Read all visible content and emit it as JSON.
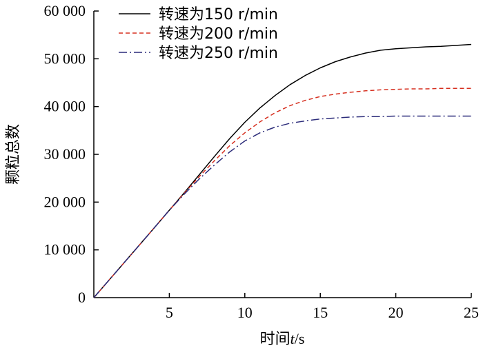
{
  "chart_data": {
    "type": "line",
    "xlabel": {
      "prefix": "时间",
      "var": "t",
      "suffix": "/s"
    },
    "ylabel": "颗粒总数",
    "xlim": [
      0,
      25
    ],
    "ylim": [
      0,
      60000
    ],
    "xticks": [
      {
        "value": 5,
        "label": "5"
      },
      {
        "value": 10,
        "label": "10"
      },
      {
        "value": 15,
        "label": "15"
      },
      {
        "value": 20,
        "label": "20"
      },
      {
        "value": 25,
        "label": "25"
      }
    ],
    "yticks": [
      {
        "value": 0,
        "label": "0"
      },
      {
        "value": 10000,
        "label": "10 000"
      },
      {
        "value": 20000,
        "label": "20 000"
      },
      {
        "value": 30000,
        "label": "30 000"
      },
      {
        "value": 40000,
        "label": "40 000"
      },
      {
        "value": 50000,
        "label": "50 000"
      },
      {
        "value": 60000,
        "label": "60 000"
      }
    ],
    "grid": false,
    "legend_position": "top-left",
    "series": [
      {
        "name": "转速为150 r/min",
        "color": "#000000",
        "dash": "solid",
        "x": [
          0,
          2,
          4,
          5,
          6,
          7,
          8,
          9,
          10,
          11,
          12,
          13,
          14,
          15,
          16,
          17,
          18,
          19,
          20,
          21,
          22,
          23,
          24,
          25
        ],
        "y": [
          0,
          7300,
          14600,
          18300,
          22000,
          25800,
          29600,
          33300,
          36700,
          39700,
          42300,
          44600,
          46500,
          48100,
          49400,
          50400,
          51200,
          51800,
          52100,
          52300,
          52500,
          52600,
          52800,
          53000
        ]
      },
      {
        "name": "转速为200 r/min",
        "color": "#d62f1f",
        "dash": "dashed",
        "x": [
          0,
          2,
          4,
          5,
          6,
          7,
          8,
          9,
          10,
          11,
          12,
          13,
          14,
          15,
          16,
          17,
          18,
          19,
          20,
          21,
          22,
          23,
          24,
          25
        ],
        "y": [
          0,
          7300,
          14600,
          18300,
          21900,
          25400,
          28700,
          31800,
          34500,
          36800,
          38700,
          40200,
          41300,
          42100,
          42600,
          43000,
          43300,
          43500,
          43600,
          43700,
          43700,
          43800,
          43800,
          43800
        ]
      },
      {
        "name": "转速为250 r/min",
        "color": "#2c2c7a",
        "dash": "dashdot",
        "x": [
          0,
          2,
          4,
          5,
          6,
          7,
          8,
          9,
          10,
          11,
          12,
          13,
          14,
          15,
          16,
          17,
          18,
          19,
          20,
          21,
          22,
          23,
          24,
          25
        ],
        "y": [
          0,
          7300,
          14600,
          18300,
          21700,
          24900,
          27800,
          30500,
          32800,
          34500,
          35700,
          36500,
          37000,
          37400,
          37600,
          37800,
          37900,
          37900,
          38000,
          38000,
          38000,
          38000,
          38000,
          38000
        ]
      }
    ]
  }
}
